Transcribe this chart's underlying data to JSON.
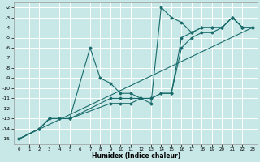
{
  "xlabel": "Humidex (Indice chaleur)",
  "background_color": "#c8e8e8",
  "grid_color": "#ffffff",
  "line_color": "#1a6b6b",
  "xlim": [
    -0.5,
    23.5
  ],
  "ylim": [
    -15.5,
    -1.5
  ],
  "xticks": [
    0,
    1,
    2,
    3,
    4,
    5,
    6,
    7,
    8,
    9,
    10,
    11,
    12,
    13,
    14,
    15,
    16,
    17,
    18,
    19,
    20,
    21,
    22,
    23
  ],
  "yticks": [
    -15,
    -14,
    -13,
    -12,
    -11,
    -10,
    -9,
    -8,
    -7,
    -6,
    -5,
    -4,
    -3,
    -2
  ],
  "lines": [
    {
      "x": [
        0,
        2,
        3,
        4,
        5,
        7,
        8,
        9,
        10,
        11,
        12,
        13,
        14,
        15,
        16,
        17,
        18,
        19,
        20,
        21,
        22,
        23
      ],
      "y": [
        -15,
        -14,
        -13,
        -13,
        -13,
        -6,
        -9,
        -9.5,
        -10.5,
        -10.5,
        -11,
        -11.5,
        -2,
        -3,
        -3.5,
        -4.5,
        -4,
        -4,
        -4,
        -3,
        -4,
        -4
      ]
    },
    {
      "x": [
        0,
        2,
        3,
        4,
        5,
        9,
        10,
        11,
        12,
        13,
        14,
        15,
        16,
        17,
        18,
        19,
        20,
        21,
        22,
        23
      ],
      "y": [
        -15,
        -14,
        -13,
        -13,
        -13,
        -11,
        -11,
        -11,
        -11,
        -11,
        -10.5,
        -10.5,
        -5,
        -4.5,
        -4,
        -4,
        -4,
        -3,
        -4,
        -4
      ]
    },
    {
      "x": [
        0,
        2,
        3,
        4,
        5,
        9,
        10,
        11,
        12,
        13,
        14,
        15,
        16,
        17,
        18,
        19,
        20,
        21,
        22,
        23
      ],
      "y": [
        -15,
        -14,
        -13,
        -13,
        -13,
        -11.5,
        -11.5,
        -11.5,
        -11,
        -11,
        -10.5,
        -10.5,
        -6,
        -5,
        -4.5,
        -4.5,
        -4,
        -3,
        -4,
        -4
      ]
    },
    {
      "x": [
        0,
        23
      ],
      "y": [
        -15,
        -4
      ]
    }
  ]
}
